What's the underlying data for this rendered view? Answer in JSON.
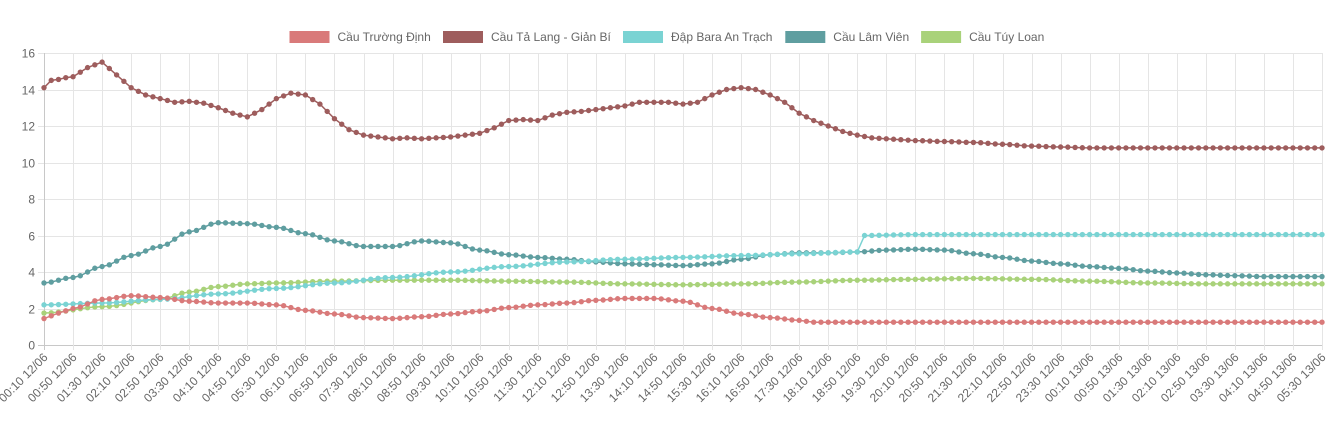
{
  "chart_data": {
    "type": "line",
    "title": "",
    "xlabel": "",
    "ylabel": "",
    "ylim": [
      0,
      16
    ],
    "yticks": [
      0,
      2,
      4,
      6,
      8,
      10,
      12,
      14,
      16
    ],
    "grid": true,
    "legend_position": "top-center",
    "x_tick_labels": [
      "00:10 12/06",
      "00:50 12/06",
      "01:30 12/06",
      "02:10 12/06",
      "02:50 12/06",
      "03:30 12/06",
      "04:10 12/06",
      "04:50 12/06",
      "05:30 12/06",
      "06:10 12/06",
      "06:50 12/06",
      "07:30 12/06",
      "08:10 12/06",
      "08:50 12/06",
      "09:30 12/06",
      "10:10 12/06",
      "10:50 12/06",
      "11:30 12/06",
      "12:10 12/06",
      "12:50 12/06",
      "13:30 12/06",
      "14:10 12/06",
      "14:50 12/06",
      "15:30 12/06",
      "16:10 12/06",
      "16:50 12/06",
      "17:30 12/06",
      "18:10 12/06",
      "18:50 12/06",
      "19:30 12/06",
      "20:10 12/06",
      "20:50 12/06",
      "21:30 12/06",
      "22:10 12/06",
      "22:50 12/06",
      "23:30 12/06",
      "00:10 13/06",
      "00:50 13/06",
      "01:30 13/06",
      "02:10 13/06",
      "02:50 13/06",
      "03:30 13/06",
      "04:10 13/06",
      "04:50 13/06",
      "05:30 13/06"
    ],
    "points_per_tick": 4,
    "series": [
      {
        "name": "Cầu Trường Định",
        "color": "#d97a7a",
        "keyframes": [
          [
            0,
            1.45
          ],
          [
            2,
            1.75
          ],
          [
            4,
            2.0
          ],
          [
            8,
            2.5
          ],
          [
            12,
            2.7
          ],
          [
            16,
            2.6
          ],
          [
            20,
            2.4
          ],
          [
            24,
            2.3
          ],
          [
            28,
            2.3
          ],
          [
            32,
            2.2
          ],
          [
            36,
            1.9
          ],
          [
            40,
            1.7
          ],
          [
            44,
            1.5
          ],
          [
            48,
            1.45
          ],
          [
            52,
            1.55
          ],
          [
            56,
            1.7
          ],
          [
            60,
            1.85
          ],
          [
            64,
            2.05
          ],
          [
            68,
            2.2
          ],
          [
            72,
            2.3
          ],
          [
            76,
            2.45
          ],
          [
            80,
            2.55
          ],
          [
            84,
            2.55
          ],
          [
            88,
            2.4
          ],
          [
            92,
            2.0
          ],
          [
            96,
            1.7
          ],
          [
            100,
            1.5
          ],
          [
            104,
            1.35
          ],
          [
            106,
            1.25
          ]
        ]
      },
      {
        "name": "Cầu Tả Lang - Giản Bí",
        "color": "#9e5d5d",
        "keyframes": [
          [
            0,
            14.1
          ],
          [
            1,
            14.5
          ],
          [
            4,
            14.7
          ],
          [
            6,
            15.2
          ],
          [
            8,
            15.5
          ],
          [
            10,
            14.8
          ],
          [
            12,
            14.1
          ],
          [
            14,
            13.7
          ],
          [
            16,
            13.5
          ],
          [
            18,
            13.3
          ],
          [
            20,
            13.35
          ],
          [
            22,
            13.25
          ],
          [
            24,
            13.0
          ],
          [
            26,
            12.7
          ],
          [
            28,
            12.5
          ],
          [
            30,
            12.9
          ],
          [
            32,
            13.5
          ],
          [
            34,
            13.8
          ],
          [
            36,
            13.7
          ],
          [
            38,
            13.2
          ],
          [
            40,
            12.4
          ],
          [
            42,
            11.8
          ],
          [
            44,
            11.5
          ],
          [
            46,
            11.4
          ],
          [
            48,
            11.3
          ],
          [
            50,
            11.35
          ],
          [
            52,
            11.3
          ],
          [
            54,
            11.35
          ],
          [
            56,
            11.4
          ],
          [
            58,
            11.5
          ],
          [
            60,
            11.6
          ],
          [
            62,
            11.9
          ],
          [
            64,
            12.3
          ],
          [
            66,
            12.35
          ],
          [
            68,
            12.3
          ],
          [
            70,
            12.6
          ],
          [
            72,
            12.75
          ],
          [
            74,
            12.8
          ],
          [
            76,
            12.9
          ],
          [
            78,
            13.0
          ],
          [
            80,
            13.1
          ],
          [
            82,
            13.3
          ],
          [
            84,
            13.3
          ],
          [
            86,
            13.3
          ],
          [
            88,
            13.2
          ],
          [
            90,
            13.3
          ],
          [
            92,
            13.7
          ],
          [
            94,
            14.0
          ],
          [
            96,
            14.1
          ],
          [
            98,
            14.0
          ],
          [
            100,
            13.7
          ],
          [
            102,
            13.3
          ],
          [
            104,
            12.7
          ],
          [
            106,
            12.3
          ],
          [
            108,
            12.0
          ],
          [
            110,
            11.7
          ],
          [
            112,
            11.5
          ],
          [
            114,
            11.35
          ],
          [
            116,
            11.3
          ],
          [
            118,
            11.25
          ],
          [
            120,
            11.2
          ],
          [
            124,
            11.15
          ],
          [
            128,
            11.1
          ],
          [
            132,
            11.0
          ],
          [
            136,
            10.9
          ],
          [
            140,
            10.85
          ],
          [
            144,
            10.8
          ],
          [
            148,
            10.8
          ],
          [
            152,
            10.8
          ],
          [
            156,
            10.8
          ],
          [
            160,
            10.8
          ],
          [
            164,
            10.8
          ],
          [
            168,
            10.8
          ],
          [
            172,
            10.8
          ],
          [
            176,
            10.8
          ],
          [
            180,
            10.85
          ]
        ]
      },
      {
        "name": "Đập Bara An Trạch",
        "color": "#7ad3d3",
        "keyframes": [
          [
            0,
            2.2
          ],
          [
            8,
            2.3
          ],
          [
            16,
            2.5
          ],
          [
            24,
            2.8
          ],
          [
            32,
            3.1
          ],
          [
            40,
            3.4
          ],
          [
            48,
            3.7
          ],
          [
            56,
            4.0
          ],
          [
            64,
            4.3
          ],
          [
            72,
            4.55
          ],
          [
            80,
            4.7
          ],
          [
            88,
            4.8
          ],
          [
            96,
            4.9
          ],
          [
            104,
            5.0
          ],
          [
            112,
            5.1
          ],
          [
            113,
            6.0
          ],
          [
            120,
            6.05
          ],
          [
            140,
            6.05
          ],
          [
            160,
            6.05
          ],
          [
            180,
            6.05
          ]
        ]
      },
      {
        "name": "Cầu Lâm Viên",
        "color": "#5f9ea0",
        "keyframes": [
          [
            0,
            3.4
          ],
          [
            4,
            3.7
          ],
          [
            8,
            4.3
          ],
          [
            12,
            4.9
          ],
          [
            16,
            5.4
          ],
          [
            20,
            6.2
          ],
          [
            24,
            6.7
          ],
          [
            28,
            6.65
          ],
          [
            32,
            6.45
          ],
          [
            36,
            6.1
          ],
          [
            40,
            5.7
          ],
          [
            44,
            5.4
          ],
          [
            48,
            5.4
          ],
          [
            52,
            5.7
          ],
          [
            56,
            5.6
          ],
          [
            60,
            5.2
          ],
          [
            64,
            4.95
          ],
          [
            68,
            4.8
          ],
          [
            72,
            4.7
          ],
          [
            76,
            4.55
          ],
          [
            80,
            4.45
          ],
          [
            84,
            4.4
          ],
          [
            88,
            4.35
          ],
          [
            92,
            4.45
          ],
          [
            96,
            4.7
          ],
          [
            100,
            4.95
          ],
          [
            104,
            5.05
          ],
          [
            108,
            5.05
          ],
          [
            112,
            5.1
          ],
          [
            116,
            5.2
          ],
          [
            120,
            5.25
          ],
          [
            124,
            5.2
          ],
          [
            128,
            5.0
          ],
          [
            132,
            4.8
          ],
          [
            136,
            4.6
          ],
          [
            140,
            4.45
          ],
          [
            144,
            4.3
          ],
          [
            148,
            4.2
          ],
          [
            152,
            4.05
          ],
          [
            156,
            3.95
          ],
          [
            160,
            3.85
          ],
          [
            164,
            3.8
          ],
          [
            168,
            3.75
          ],
          [
            172,
            3.75
          ],
          [
            176,
            3.75
          ],
          [
            180,
            3.75
          ]
        ]
      },
      {
        "name": "Cầu Túy Loan",
        "color": "#a9d27a",
        "keyframes": [
          [
            0,
            1.75
          ],
          [
            8,
            2.1
          ],
          [
            16,
            2.5
          ],
          [
            20,
            2.9
          ],
          [
            24,
            3.2
          ],
          [
            28,
            3.35
          ],
          [
            32,
            3.4
          ],
          [
            40,
            3.5
          ],
          [
            48,
            3.55
          ],
          [
            56,
            3.55
          ],
          [
            64,
            3.5
          ],
          [
            72,
            3.45
          ],
          [
            80,
            3.35
          ],
          [
            88,
            3.3
          ],
          [
            96,
            3.35
          ],
          [
            104,
            3.45
          ],
          [
            112,
            3.55
          ],
          [
            120,
            3.6
          ],
          [
            128,
            3.65
          ],
          [
            136,
            3.6
          ],
          [
            144,
            3.5
          ],
          [
            152,
            3.4
          ],
          [
            160,
            3.35
          ],
          [
            168,
            3.35
          ],
          [
            176,
            3.35
          ],
          [
            180,
            3.35
          ]
        ]
      }
    ]
  }
}
